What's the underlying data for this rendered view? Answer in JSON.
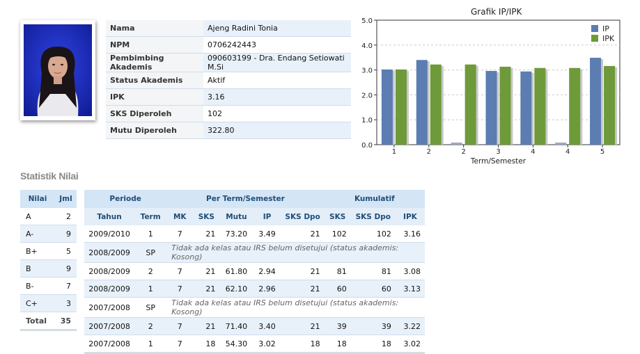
{
  "profile": {
    "rows": [
      {
        "label": "Nama",
        "value": "Ajeng Radini Tonia"
      },
      {
        "label": "NPM",
        "value": "0706242443"
      },
      {
        "label": "Pembimbing Akademis",
        "value": "090603199 - Dra. Endang Setiowati M.Si"
      },
      {
        "label": "Status Akademis",
        "value": "Aktif"
      },
      {
        "label": "IPK",
        "value": "3.16"
      },
      {
        "label": "SKS Diperoleh",
        "value": "102"
      },
      {
        "label": "Mutu Diperoleh",
        "value": "322.80"
      }
    ]
  },
  "colors": {
    "ip": "#5b7db1",
    "ipk": "#6e9a3a",
    "header": "#d4e5f5",
    "row_alt": "#e8f1fa"
  },
  "chart_data": {
    "type": "bar",
    "title": "Grafik IP/IPK",
    "xlabel": "Term/Semester",
    "ylabel": "",
    "categories": [
      "1",
      "2",
      "2",
      "3",
      "4",
      "4",
      "5"
    ],
    "series": [
      {
        "name": "IP",
        "values": [
          3.02,
          3.4,
          0.0,
          2.96,
          2.94,
          0.0,
          3.49
        ]
      },
      {
        "name": "IPK",
        "values": [
          3.02,
          3.22,
          3.22,
          3.13,
          3.08,
          3.08,
          3.16
        ]
      }
    ],
    "ylim": [
      0,
      5
    ],
    "yticks": [
      "0.0",
      "1.0",
      "2.0",
      "3.0",
      "4.0",
      "5.0"
    ],
    "grid": true,
    "legend": "top-right"
  },
  "stats": {
    "title": "Statistik Nilai",
    "summary": {
      "headers": [
        "Nilai",
        "Jml"
      ],
      "rows": [
        {
          "grade": "A",
          "count": "2"
        },
        {
          "grade": "A-",
          "count": "9"
        },
        {
          "grade": "B+",
          "count": "5"
        },
        {
          "grade": "B",
          "count": "9"
        },
        {
          "grade": "B-",
          "count": "7"
        },
        {
          "grade": "C+",
          "count": "3"
        }
      ],
      "total_label": "Total",
      "total_value": "35"
    },
    "terms": {
      "group_headers": [
        "Periode",
        "Per Term/Semester",
        "Kumulatif"
      ],
      "headers": [
        "Tahun",
        "Term",
        "MK",
        "SKS",
        "Mutu",
        "IP",
        "SKS Dpo",
        "SKS",
        "SKS Dpo",
        "IPK"
      ],
      "rows": [
        {
          "tahun": "2009/2010",
          "term": "1",
          "mk": "7",
          "sks": "21",
          "mutu": "73.20",
          "ip": "3.49",
          "sks_dpo": "21",
          "k_sks": "102",
          "k_sks_dpo": "102",
          "ipk": "3.16"
        },
        {
          "tahun": "2008/2009",
          "term": "SP",
          "note": "Tidak ada kelas atau IRS belum disetujui (status akademis: Kosong)"
        },
        {
          "tahun": "2008/2009",
          "term": "2",
          "mk": "7",
          "sks": "21",
          "mutu": "61.80",
          "ip": "2.94",
          "sks_dpo": "21",
          "k_sks": "81",
          "k_sks_dpo": "81",
          "ipk": "3.08"
        },
        {
          "tahun": "2008/2009",
          "term": "1",
          "mk": "7",
          "sks": "21",
          "mutu": "62.10",
          "ip": "2.96",
          "sks_dpo": "21",
          "k_sks": "60",
          "k_sks_dpo": "60",
          "ipk": "3.13"
        },
        {
          "tahun": "2007/2008",
          "term": "SP",
          "note": "Tidak ada kelas atau IRS belum disetujui (status akademis: Kosong)"
        },
        {
          "tahun": "2007/2008",
          "term": "2",
          "mk": "7",
          "sks": "21",
          "mutu": "71.40",
          "ip": "3.40",
          "sks_dpo": "21",
          "k_sks": "39",
          "k_sks_dpo": "39",
          "ipk": "3.22"
        },
        {
          "tahun": "2007/2008",
          "term": "1",
          "mk": "7",
          "sks": "18",
          "mutu": "54.30",
          "ip": "3.02",
          "sks_dpo": "18",
          "k_sks": "18",
          "k_sks_dpo": "18",
          "ipk": "3.02"
        }
      ]
    }
  }
}
